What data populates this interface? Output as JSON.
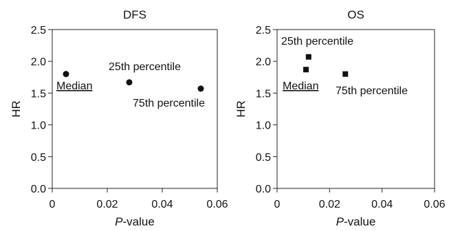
{
  "chart_data": [
    {
      "type": "scatter",
      "title": "DFS",
      "xlabel_italic": "P",
      "xlabel_rest": "-value",
      "ylabel": "HR",
      "xlim": [
        0,
        0.06
      ],
      "ylim": [
        0,
        2.5
      ],
      "xticks": [
        "0",
        "0.02",
        "0.04",
        "0.06"
      ],
      "xtick_values": [
        0,
        0.02,
        0.04,
        0.06
      ],
      "yticks": [
        "0.0",
        "0.5",
        "1.0",
        "1.5",
        "2.0",
        "2.5"
      ],
      "ytick_values": [
        0,
        0.5,
        1.0,
        1.5,
        2.0,
        2.5
      ],
      "marker": "circle",
      "points": [
        {
          "name": "Median",
          "x": 0.005,
          "y": 1.8,
          "underline": true
        },
        {
          "name": "25th percentile",
          "x": 0.028,
          "y": 1.67,
          "underline": false
        },
        {
          "name": "75th percentile",
          "x": 0.054,
          "y": 1.57,
          "underline": false
        }
      ]
    },
    {
      "type": "scatter",
      "title": "OS",
      "xlabel_italic": "P",
      "xlabel_rest": "-value",
      "ylabel": "HR",
      "xlim": [
        0,
        0.06
      ],
      "ylim": [
        0,
        2.5
      ],
      "xticks": [
        "0",
        "0.02",
        "0.04",
        "0.06"
      ],
      "xtick_values": [
        0,
        0.02,
        0.04,
        0.06
      ],
      "yticks": [
        "0.0",
        "0.5",
        "1.0",
        "1.5",
        "2.0",
        "2.5"
      ],
      "ytick_values": [
        0,
        0.5,
        1.0,
        1.5,
        2.0,
        2.5
      ],
      "marker": "square",
      "points": [
        {
          "name": "Median",
          "x": 0.011,
          "y": 1.87,
          "underline": true
        },
        {
          "name": "25th percentile",
          "x": 0.012,
          "y": 2.07,
          "underline": false
        },
        {
          "name": "75th percentile",
          "x": 0.026,
          "y": 1.8,
          "underline": false
        }
      ]
    }
  ]
}
